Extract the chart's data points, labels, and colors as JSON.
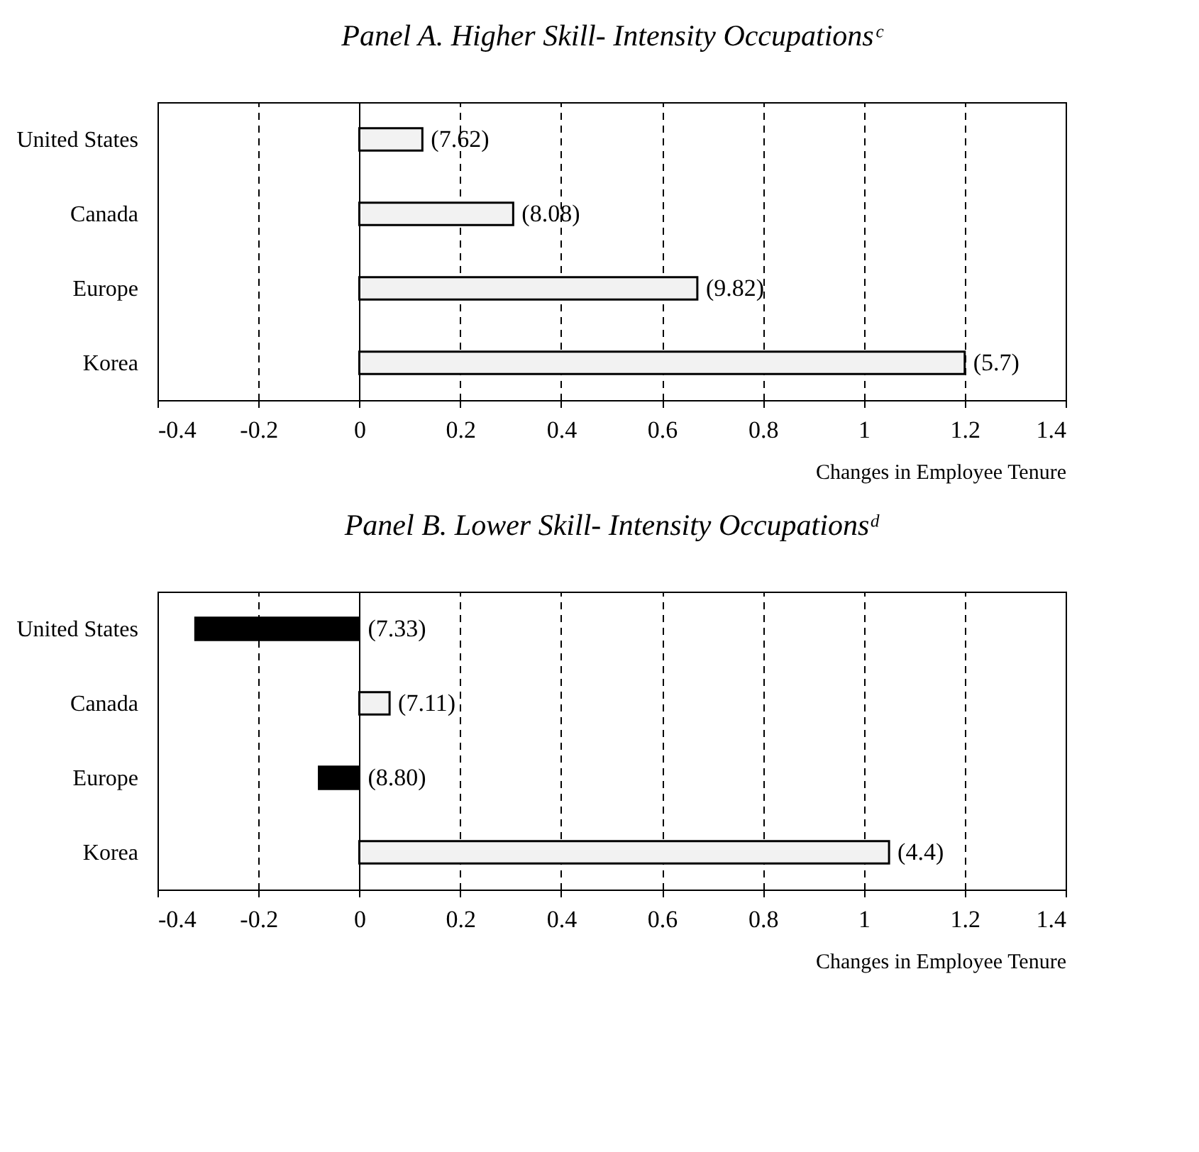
{
  "chart_data": [
    {
      "type": "bar",
      "orientation": "horizontal",
      "title": "Panel A. Higher Skill- Intensity Occupationsᶜ",
      "xlabel": "Changes in Employee Tenure",
      "categories": [
        "United States",
        "Canada",
        "Europe",
        "Korea"
      ],
      "values": [
        0.125,
        0.305,
        0.67,
        1.2
      ],
      "colors": [
        "#f2f2f2",
        "#f2f2f2",
        "#f2f2f2",
        "#f2f2f2"
      ],
      "xlim": [
        -0.4,
        1.4
      ],
      "xticks": [
        -0.4,
        -0.2,
        0,
        0.2,
        0.4,
        0.6,
        0.8,
        1,
        1.2,
        1.4
      ],
      "grid": "x",
      "line_style": "dashed",
      "annotations": [
        {
          "text": "(7.62)",
          "x": 0.125,
          "y": "United States"
        },
        {
          "text": "(8.08)",
          "x": 0.305,
          "y": "Canada"
        },
        {
          "text": "(9.82)",
          "x": 0.67,
          "y": "Europe"
        },
        {
          "text": "(5.7)",
          "x": 1.2,
          "y": "Korea"
        }
      ]
    },
    {
      "type": "bar",
      "orientation": "horizontal",
      "title": "Panel B. Lower Skill- Intensity Occupationsᵈ",
      "xlabel": "Changes in Employee Tenure",
      "categories": [
        "United States",
        "Canada",
        "Europe",
        "Korea"
      ],
      "values": [
        -0.325,
        0.06,
        -0.08,
        1.05
      ],
      "colors": [
        "#000000",
        "#f2f2f2",
        "#000000",
        "#f2f2f2"
      ],
      "xlim": [
        -0.4,
        1.4
      ],
      "xticks": [
        -0.4,
        -0.2,
        0,
        0.2,
        0.4,
        0.6,
        0.8,
        1,
        1.2,
        1.4
      ],
      "grid": "x",
      "line_style": "dashed",
      "annotations": [
        {
          "text": "(7.33)",
          "x": 0,
          "y": "United States"
        },
        {
          "text": "(7.11)",
          "x": 0.06,
          "y": "Canada"
        },
        {
          "text": "(8.80)",
          "x": 0,
          "y": "Europe"
        },
        {
          "text": "(4.4)",
          "x": 1.05,
          "y": "Korea"
        }
      ]
    }
  ]
}
